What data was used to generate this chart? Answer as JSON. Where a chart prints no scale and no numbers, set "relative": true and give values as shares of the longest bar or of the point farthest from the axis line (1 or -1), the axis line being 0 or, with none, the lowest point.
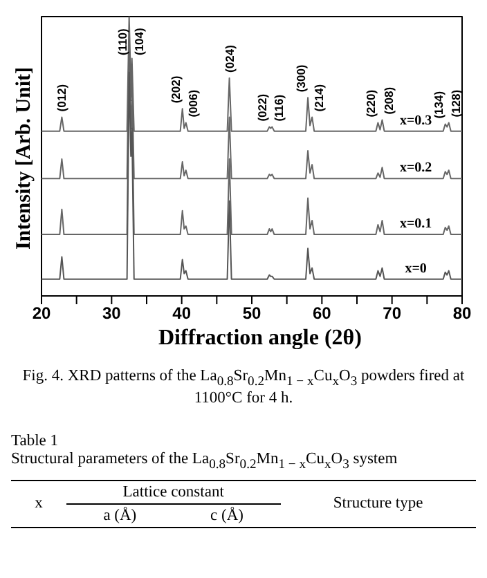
{
  "chart_data": {
    "type": "line",
    "relative": true,
    "xlabel": "Diffraction angle (2θ)",
    "ylabel": "Intensity [Arb. Unit]",
    "xlim": [
      20,
      80
    ],
    "xticks": [
      20,
      {
        "value": 25,
        "label": null
      },
      30,
      {
        "value": 35,
        "label": null
      },
      40,
      {
        "value": 45,
        "label": null
      },
      50,
      {
        "value": 55,
        "label": null
      },
      60,
      {
        "value": 65,
        "label": null
      },
      70,
      {
        "value": 75,
        "label": null
      },
      80
    ],
    "grid": false,
    "legend": false,
    "marker": "none",
    "line_style": "solid",
    "x": [
      20,
      22.6,
      22.9,
      23.2,
      32.2,
      32.5,
      32.75,
      32.9,
      33.2,
      39.8,
      40.1,
      40.35,
      40.6,
      40.9,
      46.5,
      46.8,
      47.1,
      52.2,
      52.5,
      52.7,
      52.9,
      53.2,
      57.7,
      58.0,
      58.3,
      58.6,
      58.9,
      67.7,
      68.0,
      68.3,
      68.6,
      68.9,
      77.3,
      77.6,
      77.85,
      78.1,
      78.4,
      80
    ],
    "series": [
      {
        "name": "x=0.3",
        "color": "#666666",
        "values": [
          0.59,
          0.59,
          0.64,
          0.59,
          0.59,
          1.0,
          0.75,
          0.85,
          0.59,
          0.59,
          0.67,
          0.6,
          0.62,
          0.59,
          0.59,
          0.78,
          0.59,
          0.59,
          0.605,
          0.6,
          0.605,
          0.59,
          0.59,
          0.71,
          0.61,
          0.64,
          0.59,
          0.59,
          0.62,
          0.595,
          0.63,
          0.59,
          0.59,
          0.615,
          0.605,
          0.62,
          0.59,
          0.59
        ]
      },
      {
        "name": "x=0.2",
        "color": "#666666",
        "values": [
          0.42,
          0.42,
          0.49,
          0.42,
          0.42,
          0.92,
          0.7,
          0.8,
          0.42,
          0.42,
          0.48,
          0.43,
          0.45,
          0.42,
          0.42,
          0.64,
          0.42,
          0.42,
          0.435,
          0.43,
          0.435,
          0.42,
          0.42,
          0.52,
          0.44,
          0.47,
          0.42,
          0.42,
          0.44,
          0.425,
          0.46,
          0.42,
          0.42,
          0.445,
          0.435,
          0.45,
          0.42,
          0.42
        ]
      },
      {
        "name": "x=0.1",
        "color": "#666666",
        "values": [
          0.22,
          0.22,
          0.31,
          0.22,
          0.22,
          0.85,
          0.6,
          0.7,
          0.22,
          0.22,
          0.305,
          0.24,
          0.25,
          0.22,
          0.22,
          0.49,
          0.22,
          0.22,
          0.24,
          0.23,
          0.24,
          0.22,
          0.22,
          0.35,
          0.24,
          0.27,
          0.22,
          0.22,
          0.255,
          0.23,
          0.27,
          0.22,
          0.22,
          0.245,
          0.235,
          0.25,
          0.22,
          0.22
        ]
      },
      {
        "name": "x=0",
        "color": "#555555",
        "values": [
          0.06,
          0.06,
          0.14,
          0.06,
          0.06,
          0.8,
          0.5,
          0.6,
          0.06,
          0.06,
          0.13,
          0.08,
          0.09,
          0.06,
          0.06,
          0.34,
          0.06,
          0.06,
          0.075,
          0.07,
          0.07,
          0.06,
          0.06,
          0.17,
          0.08,
          0.1,
          0.06,
          0.06,
          0.09,
          0.07,
          0.1,
          0.06,
          0.06,
          0.085,
          0.075,
          0.09,
          0.06,
          0.06
        ]
      }
    ],
    "annotations": [
      {
        "text": "(012)",
        "x": 22.9,
        "y": 0.64
      },
      {
        "text": "(110)",
        "x": 32.5,
        "y": 1.0
      },
      {
        "text": "(104)",
        "x": 32.9,
        "y": 0.85
      },
      {
        "text": "(202)",
        "x": 40.1,
        "y": 0.67
      },
      {
        "text": "(006)",
        "x": 40.6,
        "y": 0.62
      },
      {
        "text": "(024)",
        "x": 46.8,
        "y": 0.78
      },
      {
        "text": "(022)",
        "x": 52.5,
        "y": 0.605
      },
      {
        "text": "(116)",
        "x": 52.9,
        "y": 0.605
      },
      {
        "text": "(300)",
        "x": 58.0,
        "y": 0.71
      },
      {
        "text": "(214)",
        "x": 58.6,
        "y": 0.64
      },
      {
        "text": "(220)",
        "x": 68.0,
        "y": 0.62
      },
      {
        "text": "(208)",
        "x": 68.6,
        "y": 0.63
      },
      {
        "text": "(134)",
        "x": 77.6,
        "y": 0.615
      },
      {
        "text": "(128)",
        "x": 78.1,
        "y": 0.62
      },
      "Fig. 4. XRD patterns of the La$_{0.8}$Sr$_{0.2}$Mn$_{1 − x}$Cu$_{x}$O$_{3}$ powders fired at 1100°C for 4 h.",
      "Table 1",
      "Structural parameters of the La$_{0.8}$Sr$_{0.2}$Mn$_{1 − x}$Cu$_{x}$O$_{3}$ system",
      "x",
      "Lattice constant",
      "a (Å)",
      "c (Å)",
      "Structure type"
    ]
  }
}
